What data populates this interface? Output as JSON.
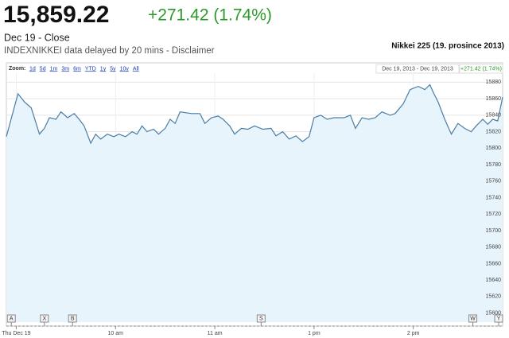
{
  "header": {
    "price": "15,859.22",
    "change": "+271.42 (1.74%)",
    "date": "Dec 19 - Close",
    "note": "INDEXNIKKEI data delayed by 20 mins - Disclaimer",
    "chart_label": "Nikkei 225 (19. prosince 2013)"
  },
  "chart_data": {
    "type": "area",
    "zoom_label": "Zoom:",
    "zoom_options": [
      "1d",
      "5d",
      "1m",
      "3m",
      "6m",
      "YTD",
      "1y",
      "5y",
      "10y",
      "All"
    ],
    "range_label": "Dec 19, 2013 - Dec 19, 2013",
    "range_change": "+271.42 (1.74%)",
    "x": [
      -6,
      1,
      5,
      9,
      12,
      14,
      17,
      20,
      24,
      27,
      31,
      35,
      38,
      41,
      45,
      48,
      51,
      55,
      59,
      62,
      66,
      70,
      73,
      76,
      79,
      83,
      86,
      90,
      93,
      96,
      99,
      106,
      111,
      114,
      118,
      122,
      125,
      129,
      132,
      136,
      140,
      144,
      149,
      154,
      157,
      161,
      165,
      169,
      173,
      177,
      180,
      184,
      188,
      192,
      198,
      202,
      205,
      209,
      213,
      217,
      221,
      226,
      229,
      234,
      238,
      243,
      247,
      250,
      252,
      255,
      259,
      263,
      267,
      271,
      275,
      278,
      282,
      285,
      288,
      291,
      294
    ],
    "values": [
      15814,
      15866,
      15856,
      15849,
      15830,
      15817,
      15824,
      15837,
      15835,
      15844,
      15837,
      15842,
      15835,
      15827,
      15806,
      15817,
      15811,
      15817,
      15814,
      15817,
      15814,
      15820,
      15817,
      15827,
      15820,
      15823,
      15817,
      15824,
      15835,
      15830,
      15844,
      15842,
      15842,
      15830,
      15837,
      15839,
      15835,
      15827,
      15817,
      15824,
      15823,
      15827,
      15823,
      15824,
      15815,
      15820,
      15811,
      15815,
      15808,
      15814,
      15837,
      15840,
      15835,
      15837,
      15837,
      15840,
      15824,
      15837,
      15835,
      15837,
      15844,
      15840,
      15842,
      15854,
      15871,
      15875,
      15871,
      15877,
      15868,
      15856,
      15835,
      15817,
      15830,
      15824,
      15820,
      15827,
      15835,
      15829,
      15835,
      15833,
      15862
    ],
    "color": "#4a7da6",
    "fill_color": "#e8f4fb",
    "xlim": [
      -6,
      294
    ],
    "xticks": [
      {
        "value": 0,
        "label": "Thu Dec 19"
      },
      {
        "value": 60,
        "label": "10 am"
      },
      {
        "value": 120,
        "label": "11 am"
      },
      {
        "value": 180,
        "label": "1 pm"
      },
      {
        "value": 240,
        "label": "2 pm"
      }
    ],
    "ylim": [
      15589,
      15891
    ],
    "yticks": [
      15600,
      15620,
      15640,
      15660,
      15680,
      15700,
      15720,
      15740,
      15760,
      15780,
      15800,
      15820,
      15840,
      15860,
      15880
    ],
    "grid": true,
    "flags": [
      {
        "label": "A",
        "x": -3
      },
      {
        "label": "X",
        "x": 17
      },
      {
        "label": "B",
        "x": 34
      },
      {
        "label": "S",
        "x": 148
      },
      {
        "label": "W",
        "x": 276
      },
      {
        "label": "Y",
        "x": 294
      }
    ]
  }
}
